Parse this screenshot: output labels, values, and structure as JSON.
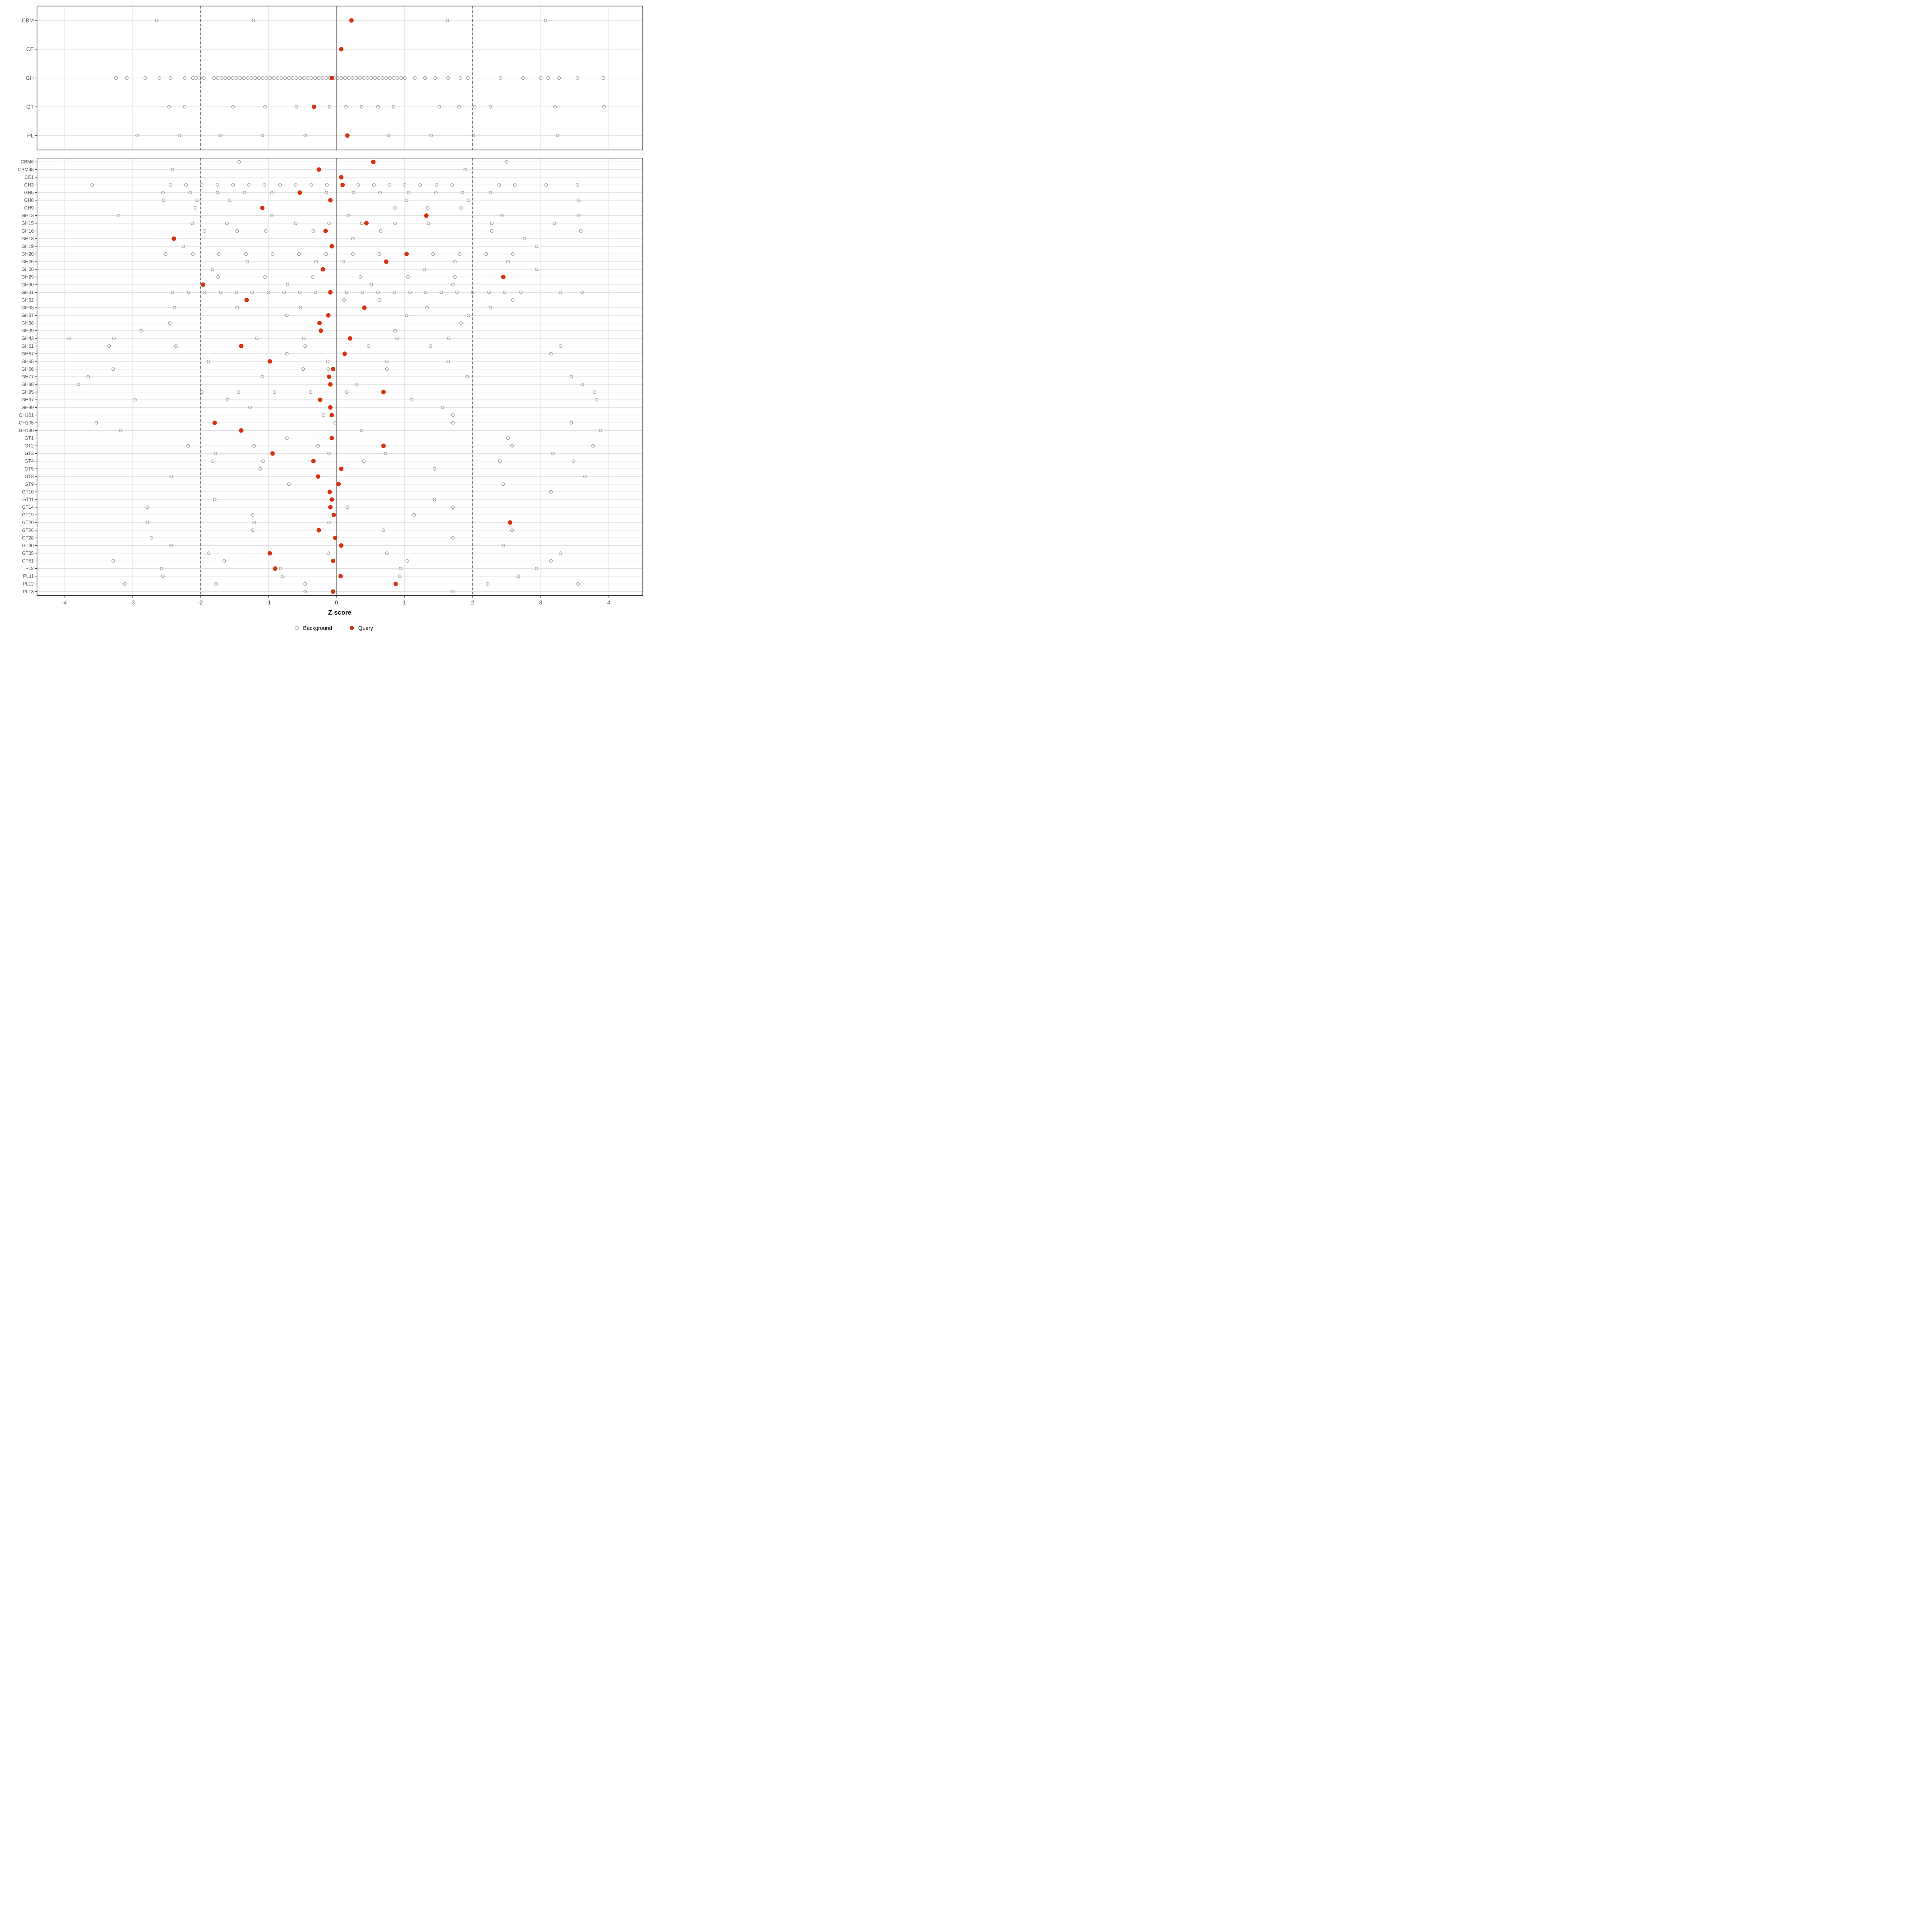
{
  "chart_data": {
    "type": "scatter",
    "title": "",
    "xlabel": "Z-score",
    "x_ticks": [
      -4,
      -3,
      -2,
      -1,
      0,
      1,
      2,
      3,
      4
    ],
    "x_domain": [
      -4.4,
      4.5
    ],
    "reference_lines": {
      "solid": 0,
      "dashed": [
        -2,
        2
      ]
    },
    "grid": "on",
    "legend_position": "bottom-center",
    "legend": [
      {
        "label": "Background",
        "marker": "open-circle"
      },
      {
        "label": "Query",
        "marker": "filled-dot"
      }
    ],
    "colors": {
      "query": "#d7310e",
      "background_stroke": "#969696",
      "gridline": "#dedede",
      "zero_line": "#6b6b6b",
      "dashed_line": "#4d4d4d",
      "panel_border": "#2b2b2b",
      "label_text": "#4d4d4d",
      "title_text": "#000000"
    },
    "panels": [
      {
        "name": "top",
        "rows": [
          {
            "label": "CBM",
            "query": 0.22,
            "background": [
              -2.64,
              -1.22,
              1.63,
              3.07
            ]
          },
          {
            "label": "CE",
            "query": 0.07,
            "background": []
          },
          {
            "label": "GH",
            "query": -0.07,
            "background": [
              -3.24,
              -3.08,
              -2.81,
              -2.6,
              -2.44,
              -2.23,
              -2.11,
              -2.06,
              -2.0,
              -1.95,
              -1.8,
              -1.745,
              -1.69,
              -1.635,
              -1.58,
              -1.525,
              -1.47,
              -1.415,
              -1.36,
              -1.305,
              -1.25,
              -1.195,
              -1.14,
              -1.085,
              -1.03,
              -0.975,
              -0.92,
              -0.865,
              -0.81,
              -0.755,
              -0.7,
              -0.645,
              -0.59,
              -0.535,
              -0.48,
              -0.425,
              -0.37,
              -0.315,
              -0.26,
              -0.205,
              -0.15,
              -0.095,
              -0.04,
              0.015,
              0.07,
              0.125,
              0.18,
              0.235,
              0.29,
              0.345,
              0.4,
              0.455,
              0.51,
              0.565,
              0.62,
              0.675,
              0.73,
              0.785,
              0.84,
              0.895,
              0.95,
              1.005,
              1.15,
              1.3,
              1.45,
              1.64,
              1.82,
              1.93,
              2.41,
              2.74,
              3.0,
              3.11,
              3.27,
              3.54,
              3.92
            ]
          },
          {
            "label": "GT",
            "query": -0.33,
            "background": [
              -2.46,
              -2.23,
              -1.52,
              -1.05,
              -0.59,
              -0.1,
              0.14,
              0.37,
              0.61,
              0.84,
              1.51,
              1.8,
              2.03,
              2.26,
              3.21,
              3.93
            ]
          },
          {
            "label": "PL",
            "query": 0.16,
            "background": [
              -2.93,
              -2.31,
              -1.7,
              -1.09,
              -0.46,
              0.76,
              1.39,
              2.01,
              3.25
            ]
          }
        ]
      },
      {
        "name": "bottom",
        "rows": [
          {
            "label": "CBM6",
            "query": 0.54,
            "background": [
              -1.43,
              2.5
            ]
          },
          {
            "label": "CBM48",
            "query": -0.26,
            "background": [
              -2.41,
              1.89
            ]
          },
          {
            "label": "CE1",
            "query": 0.07,
            "background": []
          },
          {
            "label": "GH3",
            "query": 0.09,
            "background": [
              -3.59,
              -2.44,
              -2.21,
              -1.98,
              -1.75,
              -1.52,
              -1.29,
              -1.06,
              -0.83,
              -0.6,
              -0.37,
              -0.14,
              0.32,
              0.55,
              0.78,
              1.0,
              1.23,
              1.47,
              1.7,
              2.39,
              2.62,
              3.08,
              3.54
            ]
          },
          {
            "label": "GH5",
            "query": -0.54,
            "background": [
              -2.55,
              -2.15,
              -1.75,
              -1.35,
              -0.95,
              -0.15,
              0.25,
              0.64,
              1.06,
              1.46,
              1.85,
              2.26
            ]
          },
          {
            "label": "GH8",
            "query": -0.09,
            "background": [
              -2.54,
              -2.05,
              -1.57,
              1.03,
              1.94,
              3.56
            ]
          },
          {
            "label": "GH9",
            "query": -1.09,
            "background": [
              -2.07,
              0.86,
              1.34,
              1.83
            ]
          },
          {
            "label": "GH13",
            "query": 1.32,
            "background": [
              -3.2,
              -0.95,
              0.18,
              2.43,
              3.56
            ]
          },
          {
            "label": "GH15",
            "query": 0.44,
            "background": [
              -2.12,
              -1.61,
              -0.6,
              -0.11,
              0.37,
              0.86,
              1.35,
              2.28,
              3.2
            ]
          },
          {
            "label": "GH16",
            "query": -0.16,
            "background": [
              -1.94,
              -1.46,
              -1.04,
              -0.34,
              0.65,
              2.28,
              3.59
            ]
          },
          {
            "label": "GH18",
            "query": -2.39,
            "background": [
              0.24,
              2.76
            ]
          },
          {
            "label": "GH19",
            "query": -0.07,
            "background": [
              -2.25,
              2.94
            ]
          },
          {
            "label": "GH20",
            "query": 1.03,
            "background": [
              -2.51,
              -2.11,
              -1.73,
              -1.33,
              -0.94,
              -0.55,
              -0.15,
              0.24,
              0.63,
              1.42,
              1.81,
              2.2,
              2.59
            ]
          },
          {
            "label": "GH26",
            "query": 0.73,
            "background": [
              -1.31,
              -0.3,
              0.1,
              1.74,
              2.52
            ]
          },
          {
            "label": "GH28",
            "query": -0.2,
            "background": [
              -1.82,
              1.29,
              2.94
            ]
          },
          {
            "label": "GH29",
            "query": 2.45,
            "background": [
              -1.74,
              -1.05,
              -0.35,
              0.35,
              1.05,
              1.74
            ]
          },
          {
            "label": "GH30",
            "query": -1.96,
            "background": [
              -0.72,
              0.51,
              1.71
            ]
          },
          {
            "label": "GH31",
            "query": -0.09,
            "background": [
              -2.41,
              -2.17,
              -1.94,
              -1.7,
              -1.47,
              -1.24,
              -1.0,
              -0.77,
              -0.54,
              -0.31,
              0.15,
              0.38,
              0.61,
              0.85,
              1.08,
              1.31,
              1.54,
              1.77,
              2.0,
              2.24,
              2.47,
              2.71,
              3.29,
              3.61
            ]
          },
          {
            "label": "GH32",
            "query": -1.32,
            "background": [
              0.11,
              0.63,
              2.59
            ]
          },
          {
            "label": "GH33",
            "query": 0.41,
            "background": [
              -2.38,
              -1.46,
              -0.53,
              1.33,
              2.26
            ]
          },
          {
            "label": "GH37",
            "query": -0.12,
            "background": [
              -0.73,
              1.03,
              1.94
            ]
          },
          {
            "label": "GH38",
            "query": -0.25,
            "background": [
              -2.45,
              1.83
            ]
          },
          {
            "label": "GH39",
            "query": -0.23,
            "background": [
              -2.87,
              0.86
            ]
          },
          {
            "label": "GH43",
            "query": 0.2,
            "background": [
              -3.93,
              -3.27,
              -1.17,
              -0.48,
              0.89,
              1.65
            ]
          },
          {
            "label": "GH51",
            "query": -1.4,
            "background": [
              -3.34,
              -2.36,
              -0.46,
              0.47,
              1.38,
              3.29
            ]
          },
          {
            "label": "GH57",
            "query": 0.12,
            "background": [
              -0.73,
              3.15
            ]
          },
          {
            "label": "GH65",
            "query": -0.98,
            "background": [
              -1.88,
              -0.13,
              0.74,
              1.64
            ]
          },
          {
            "label": "GH66",
            "query": -0.05,
            "background": [
              -3.28,
              -0.49,
              -0.12,
              0.74
            ]
          },
          {
            "label": "GH77",
            "query": -0.11,
            "background": [
              -3.65,
              -1.09,
              1.92,
              3.45
            ]
          },
          {
            "label": "GH88",
            "query": -0.09,
            "background": [
              -3.79,
              0.29,
              3.61
            ]
          },
          {
            "label": "GH95",
            "query": 0.69,
            "background": [
              -1.98,
              -1.44,
              -0.91,
              -0.38,
              0.15,
              3.79
            ]
          },
          {
            "label": "GH97",
            "query": -0.24,
            "background": [
              -2.96,
              -1.6,
              1.1,
              3.82
            ]
          },
          {
            "label": "GH99",
            "query": -0.09,
            "background": [
              -1.27,
              1.56
            ]
          },
          {
            "label": "GH101",
            "query": -0.07,
            "background": [
              -0.19,
              1.71
            ]
          },
          {
            "label": "GH105",
            "query": -1.79,
            "background": [
              -3.53,
              -0.02,
              1.71,
              3.45
            ]
          },
          {
            "label": "GH130",
            "query": -1.4,
            "background": [
              -3.17,
              0.37,
              3.88
            ]
          },
          {
            "label": "GT1",
            "query": -0.07,
            "background": [
              -0.73,
              2.52
            ]
          },
          {
            "label": "GT2",
            "query": 0.69,
            "background": [
              -2.18,
              -1.21,
              -0.27,
              2.58,
              3.77
            ]
          },
          {
            "label": "GT3",
            "query": -0.94,
            "background": [
              -1.78,
              -0.11,
              0.72,
              3.18
            ]
          },
          {
            "label": "GT4",
            "query": -0.34,
            "background": [
              -1.82,
              -1.08,
              0.4,
              2.4,
              3.48
            ]
          },
          {
            "label": "GT5",
            "query": 0.07,
            "background": [
              -1.12,
              1.44
            ]
          },
          {
            "label": "GT8",
            "query": -0.27,
            "background": [
              -2.43,
              3.65
            ]
          },
          {
            "label": "GT9",
            "query": 0.03,
            "background": [
              -0.7,
              2.45
            ]
          },
          {
            "label": "GT10",
            "query": -0.1,
            "background": [
              3.15
            ]
          },
          {
            "label": "GT11",
            "query": -0.07,
            "background": [
              -1.79,
              1.44
            ]
          },
          {
            "label": "GT14",
            "query": -0.09,
            "background": [
              -2.78,
              0.16,
              1.71
            ]
          },
          {
            "label": "GT19",
            "query": -0.04,
            "background": [
              -1.23,
              1.14
            ]
          },
          {
            "label": "GT20",
            "query": 2.55,
            "background": [
              -2.78,
              -1.21,
              -0.11
            ]
          },
          {
            "label": "GT26",
            "query": -0.26,
            "background": [
              -1.23,
              0.69,
              2.58
            ]
          },
          {
            "label": "GT28",
            "query": -0.02,
            "background": [
              -2.72,
              1.71
            ]
          },
          {
            "label": "GT30",
            "query": 0.07,
            "background": [
              -2.43,
              2.45
            ]
          },
          {
            "label": "GT35",
            "query": -0.98,
            "background": [
              -1.88,
              -0.12,
              0.74,
              3.29
            ]
          },
          {
            "label": "GT51",
            "query": -0.05,
            "background": [
              -3.28,
              -1.65,
              1.04,
              3.15
            ]
          },
          {
            "label": "PL8",
            "query": -0.9,
            "background": [
              -2.57,
              -0.82,
              0.94,
              2.94
            ]
          },
          {
            "label": "PL11",
            "query": 0.06,
            "background": [
              -2.55,
              -0.79,
              0.93,
              2.67
            ]
          },
          {
            "label": "PL12",
            "query": 0.87,
            "background": [
              -3.11,
              -1.77,
              -0.46,
              2.22,
              3.55
            ]
          },
          {
            "label": "PL13",
            "query": -0.05,
            "background": [
              -0.46,
              1.71
            ]
          }
        ]
      }
    ]
  }
}
